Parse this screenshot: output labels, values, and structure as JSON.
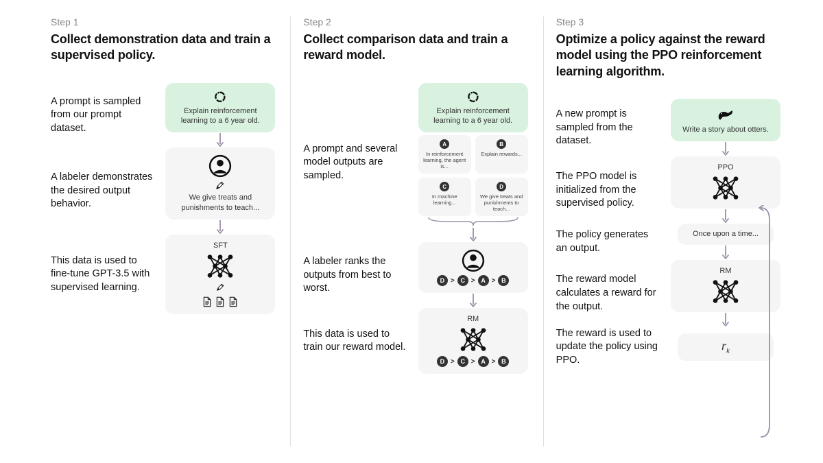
{
  "colors": {
    "background": "#ffffff",
    "node_bg": "#f5f5f5",
    "node_green": "#d9f2e0",
    "divider": "#e0e0e0",
    "arrow": "#9b8fa8",
    "text": "#111111",
    "muted": "#888888",
    "badge": "#333333"
  },
  "typography": {
    "step_label_size": 14,
    "title_size": 18,
    "desc_size": 14.5,
    "node_text_size": 11
  },
  "steps": [
    {
      "label": "Step 1",
      "title": "Collect demonstration data and train a supervised policy.",
      "items": [
        {
          "desc": "A prompt is sampled from our prompt dataset.",
          "node": {
            "kind": "prompt",
            "text": "Explain reinforcement learning to a 6 year old.",
            "icon": "cycle"
          }
        },
        {
          "desc": "A labeler demonstrates the desired output behavior.",
          "node": {
            "kind": "labeler",
            "text": "We give treats and punishments to teach...",
            "icon": "person",
            "subicon": "pencil"
          }
        },
        {
          "desc": "This data is used to fine-tune GPT-3.5 with supervised learning.",
          "node": {
            "kind": "model",
            "header": "SFT",
            "icon": "nn",
            "subicon": "pencil",
            "docs": true
          }
        }
      ]
    },
    {
      "label": "Step 2",
      "title": "Collect comparison data and train a reward model.",
      "items": [
        {
          "desc": "A prompt and several model outputs are sampled.",
          "node": {
            "kind": "prompt_with_options",
            "text": "Explain reinforcement learning to a 6 year old.",
            "icon": "cycle",
            "options": [
              {
                "badge": "A",
                "text": "In reinforcement learning, the agent is..."
              },
              {
                "badge": "B",
                "text": "Explain rewards..."
              },
              {
                "badge": "C",
                "text": "In machine learning..."
              },
              {
                "badge": "D",
                "text": "We give treats and punishments to teach..."
              }
            ]
          }
        },
        {
          "desc": "A labeler ranks the outputs from best to worst.",
          "node": {
            "kind": "person_rank",
            "icon": "person",
            "ranking": [
              "D",
              "C",
              "A",
              "B"
            ]
          }
        },
        {
          "desc": "This data is used to train our reward model.",
          "node": {
            "kind": "model_rank",
            "header": "RM",
            "icon": "nn",
            "ranking": [
              "D",
              "C",
              "A",
              "B"
            ]
          }
        }
      ]
    },
    {
      "label": "Step 3",
      "title": "Optimize a policy against the reward model using the PPO reinforcement learning algorithm.",
      "items": [
        {
          "desc": "A new prompt is sampled from the dataset.",
          "node": {
            "kind": "prompt",
            "text": "Write a story about otters.",
            "icon": "otter"
          }
        },
        {
          "desc": "The PPO model is initialized from the supervised policy.",
          "node": {
            "kind": "model",
            "header": "PPO",
            "icon": "nn"
          }
        },
        {
          "desc": "The policy generates an output.",
          "node": {
            "kind": "output",
            "text": "Once upon a time..."
          }
        },
        {
          "desc": "The reward model calculates a reward for the output.",
          "node": {
            "kind": "model",
            "header": "RM",
            "icon": "nn"
          }
        },
        {
          "desc": "The reward is used to update the policy using PPO.",
          "node": {
            "kind": "formula",
            "text": "r",
            "sub": "k"
          }
        }
      ],
      "loop": {
        "from": 4,
        "to": 1
      }
    }
  ]
}
